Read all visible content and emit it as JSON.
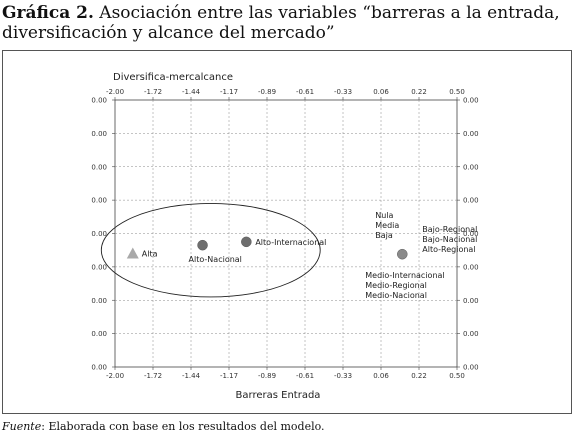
{
  "figure": {
    "number": "Gráfica 2.",
    "title": "Asociación entre las variables “barreras a la entrada, diversificación y alcance del mercado”",
    "source_prefix": "Fuente",
    "source_text": ": Elaborada con base en los resultados del modelo."
  },
  "chart_data": {
    "type": "scatter",
    "title": "Asociación entre las variables “barreras a la entrada, diversificación y alcance del mercado”",
    "xlabel": "Barreras Entrada",
    "top_axis_label": "Diversifica-mercalcance",
    "xlim": [
      -2.0,
      0.5
    ],
    "x_ticks": [
      "-2.00",
      "-1.72",
      "-1.44",
      "-1.17",
      "-0.89",
      "-0.61",
      "-0.33",
      "0.06",
      "0.22",
      "0.50"
    ],
    "y_ticks": [
      "0.00",
      "0.00",
      "0.00",
      "0.00",
      "0.00",
      "0.00",
      "0.00",
      "0.00",
      "0.00"
    ],
    "grid": true,
    "points": [
      {
        "x": -1.87,
        "y": -0.6,
        "marker": "triangle",
        "color": "#a9a9a9",
        "labels": [
          "Alta"
        ],
        "label_side": "right"
      },
      {
        "x": -1.36,
        "y": -0.35,
        "marker": "circle",
        "color": "#6e6e6e",
        "labels": [
          "Alto-Nacional"
        ],
        "label_side": "below"
      },
      {
        "x": -1.04,
        "y": -0.25,
        "marker": "circle",
        "color": "#6e6e6e",
        "labels": [
          "Alto-Internacional"
        ],
        "label_side": "right"
      },
      {
        "x": 0.1,
        "y": -0.62,
        "marker": "circle",
        "color": "#8a8a8a",
        "labels": [
          "Nula",
          "Media",
          "Baja"
        ],
        "label_side": "above-left"
      },
      {
        "x": 0.1,
        "y": -0.62,
        "marker": "none",
        "color": "#8a8a8a",
        "labels": [
          "Bajo-Regional",
          "Bajo-Nacional",
          "Alto-Regional"
        ],
        "label_side": "above-right"
      },
      {
        "x": 0.1,
        "y": -0.62,
        "marker": "none",
        "color": "#8a8a8a",
        "labels": [
          "Medio-Internacional",
          "Medio-Regional",
          "Medio-Nacional"
        ],
        "label_side": "below-left"
      }
    ],
    "ellipse": {
      "center_x": -1.3,
      "center_y": -0.5,
      "radius_x": 0.8,
      "radius_y": 1.4
    }
  }
}
